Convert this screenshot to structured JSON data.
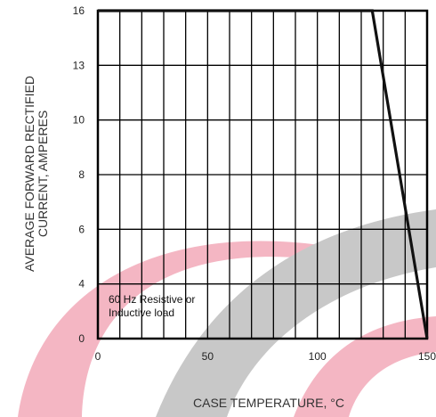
{
  "chart_data": {
    "type": "line",
    "xlabel": "CASE TEMPERATURE, °C",
    "ylabel_lines": [
      "AVERAGE FORWARD RECTIFIED",
      "CURRENT, AMPERES"
    ],
    "xlim": [
      0,
      150
    ],
    "ylim": [
      0,
      16
    ],
    "x_ticks": [
      0,
      50,
      100,
      150
    ],
    "y_ticks": [
      0,
      4,
      6,
      8,
      10,
      13,
      16
    ],
    "grid": true,
    "series": [
      {
        "x": [
          0,
          125,
          150
        ],
        "y": [
          16,
          16,
          0
        ]
      }
    ],
    "annotation_lines": [
      "60 Hz Resistive or",
      "Inductive load"
    ]
  },
  "colors": {
    "watermark_pink": "#f4b6c3",
    "watermark_gray": "#c8c8c8",
    "grid": "#000000",
    "curve": "#111111"
  }
}
